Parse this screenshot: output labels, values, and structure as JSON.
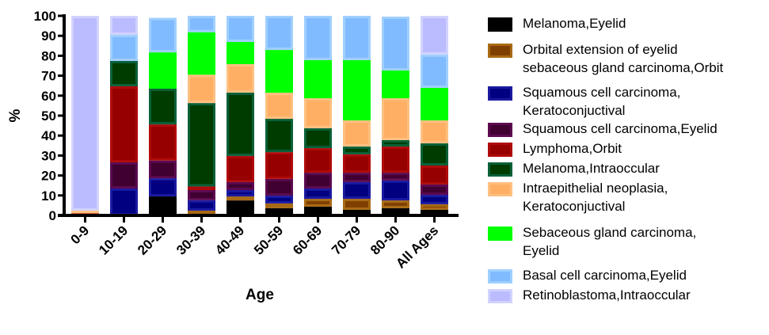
{
  "chart_data": {
    "type": "bar",
    "stacked": true,
    "title": "",
    "xlabel": "Age",
    "ylabel": "%",
    "ylim": [
      0,
      100
    ],
    "yticks": [
      0,
      10,
      20,
      30,
      40,
      50,
      60,
      70,
      80,
      90,
      100
    ],
    "grid": false,
    "legend_position": "right",
    "categories": [
      "0-9",
      "10-19",
      "20-29",
      "30-39",
      "40-49",
      "50-59",
      "60-69",
      "70-79",
      "80-90",
      "All Ages"
    ],
    "series": [
      {
        "name": "Melanoma,Eyelid",
        "color": "#000000",
        "border": "#000000",
        "values": [
          0,
          0,
          9.5,
          0,
          7.5,
          3.6,
          4.4,
          2.8,
          3.6,
          2.8
        ]
      },
      {
        "name": "Orbital extension of eyelid\nsebaceous gland carcinoma,Orbit",
        "color": "#7f3f00",
        "border": "#a86a14",
        "values": [
          0,
          0,
          0,
          2.4,
          2.0,
          2.4,
          3.9,
          5.5,
          3.9,
          2.8
        ]
      },
      {
        "name": "Squamous cell carcinoma,\nKeratoconjuctival",
        "color": "#000080",
        "border": "#1a1aa0",
        "values": [
          0,
          13.5,
          9.1,
          5.2,
          3.2,
          3.9,
          5.2,
          8.4,
          10.0,
          4.7
        ]
      },
      {
        "name": "Squamous cell carcinoma,Eyelid",
        "color": "#400030",
        "border": "#5c0a50",
        "values": [
          0,
          13.1,
          8.9,
          5.1,
          4.0,
          8.4,
          7.9,
          4.7,
          3.9,
          5.2
        ]
      },
      {
        "name": "Lymphoma,Orbit",
        "color": "#960000",
        "border": "#b00a0a",
        "values": [
          1.6,
          38.1,
          18.1,
          1.8,
          13.1,
          13.4,
          12.3,
          9.2,
          13.1,
          9.5
        ]
      },
      {
        "name": "Melanoma,Intraoccular",
        "color": "#003c00",
        "border": "#0a6038",
        "values": [
          0,
          12.7,
          17.9,
          41.8,
          31.7,
          16.7,
          10.0,
          3.9,
          3.2,
          11.1
        ]
      },
      {
        "name": "Intraepithelial neoplasia,\nKeratoconjuctival",
        "color": "#ffaf64",
        "border": "#ffc080",
        "values": [
          0.8,
          0,
          0,
          14.2,
          14.3,
          13.1,
          15.0,
          13.1,
          21.0,
          11.5
        ]
      },
      {
        "name": "Sebaceous gland carcinoma,\nEyelid",
        "color": "#00ff00",
        "border": "#00ff00",
        "values": [
          0,
          0,
          18.2,
          21.3,
          11.1,
          21.4,
          19.1,
          30.2,
          13.9,
          16.3
        ]
      },
      {
        "name": "Basal cell carcinoma,Eyelid",
        "color": "#80bbff",
        "border": "#a0cfff",
        "values": [
          0,
          13.1,
          17.3,
          8.2,
          13.1,
          17.1,
          22.2,
          22.2,
          27.0,
          16.7
        ]
      },
      {
        "name": "Retinoblastoma,Intraoccular",
        "color": "#bbbbff",
        "border": "#d2d2ff",
        "values": [
          97.6,
          9.5,
          0,
          0,
          0,
          0,
          0,
          0,
          0,
          19.4
        ]
      }
    ]
  }
}
